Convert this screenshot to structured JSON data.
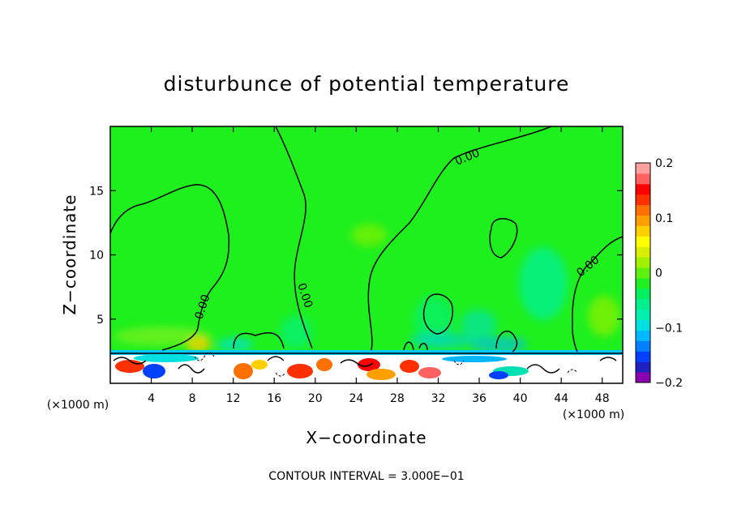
{
  "chart_data": {
    "type": "heatmap",
    "title": "disturbunce of potential temperature",
    "xlabel": "X−coordinate",
    "ylabel": "Z−coordinate",
    "x_unit": "(×1000 m)",
    "y_unit": "(×1000 m)",
    "xlim": [
      0,
      50
    ],
    "ylim": [
      0,
      20
    ],
    "x_ticks": [
      4,
      8,
      12,
      16,
      20,
      24,
      28,
      32,
      36,
      40,
      44,
      48
    ],
    "y_ticks": [
      5,
      10,
      15
    ],
    "colorbar": {
      "range": [
        -0.2,
        0.2
      ],
      "tick_values": [
        0.2,
        0.1,
        0,
        -0.1,
        -0.2
      ],
      "tick_labels": [
        "0.2",
        "0.1",
        "0",
        "−0.1",
        "−0.2"
      ],
      "colors": [
        "#8a00b0",
        "#2020c0",
        "#0040ff",
        "#0080ff",
        "#00b8ff",
        "#00e0e0",
        "#00f0b0",
        "#00f090",
        "#00f060",
        "#20f020",
        "#60f010",
        "#a0f000",
        "#d8f000",
        "#ffff00",
        "#ffd000",
        "#ffa000",
        "#ff7000",
        "#ff3000",
        "#ff0000",
        "#ff6060",
        "#ffa0a0"
      ]
    },
    "contour_interval": "CONTOUR INTERVAL = 3.000E−01",
    "contour_labels": [
      "0.00",
      "0.00",
      "0.00",
      "0.00"
    ],
    "background_value": 0.02,
    "grid": false
  }
}
